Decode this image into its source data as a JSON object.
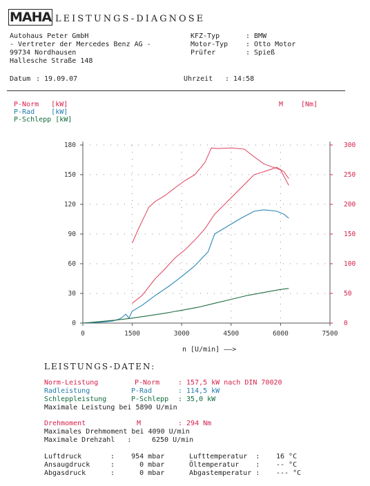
{
  "header": {
    "logo": "MAHA",
    "title": "LEISTUNGS-DIAGNOSE",
    "company_lines": [
      "Autohaus Peter GmbH",
      "- Vertreter der Mercedes Benz AG -",
      "99734 Nordhausen",
      "Hallesche Straße 148"
    ],
    "kfz_typ_label": "KFZ-Typ",
    "kfz_typ_value": ": BMW",
    "motor_typ_label": "Motor-Typ",
    "motor_typ_value": ": Otto Motor",
    "pruefer_label": "Prüfer",
    "pruefer_value": ": Spieß",
    "datum_label": "Datum",
    "datum_value": ": 19.09.07",
    "uhrzeit_label": "Uhrzeit",
    "uhrzeit_value": ": 14:58"
  },
  "legend": {
    "p_norm": "P-Norm   [kW]",
    "p_rad": "P-Rad    [kW]",
    "p_schlepp": "P-Schlepp [kW]",
    "m": "M",
    "m_unit": "[Nm]"
  },
  "chart_data": {
    "type": "line",
    "xlabel": "n [U/min] ——>",
    "xlim": [
      0,
      7500
    ],
    "ylim_left": [
      0,
      180
    ],
    "ylim_right": [
      0,
      300
    ],
    "x_ticks": [
      "0",
      "1500",
      "3000",
      "4500",
      "6000",
      "7500"
    ],
    "y_ticks_left": [
      "0",
      "30",
      "60",
      "90",
      "120",
      "150",
      "180"
    ],
    "y_ticks_right": [
      "0",
      "50",
      "100",
      "150",
      "200",
      "250",
      "300"
    ],
    "grid": "dotted",
    "colors": {
      "p_norm": "#e0506a",
      "p_rad": "#2a86b8",
      "p_schlepp": "#1f6b3e",
      "m": "#e0506a"
    },
    "series": [
      {
        "name": "P-Norm",
        "axis": "left",
        "color": "#e0506a",
        "x": [
          1500,
          1800,
          2200,
          2500,
          2800,
          3100,
          3400,
          3700,
          4000,
          4300,
          4600,
          4900,
          5200,
          5500,
          5890,
          6100,
          6250
        ],
        "y": [
          20,
          28,
          45,
          55,
          66,
          74,
          84,
          95,
          110,
          120,
          130,
          140,
          150,
          153,
          157.5,
          153,
          146
        ]
      },
      {
        "name": "P-Rad",
        "axis": "left",
        "color": "#2a86b8",
        "x": [
          0,
          600,
          900,
          1100,
          1200,
          1300,
          1400,
          1500,
          1800,
          2200,
          2600,
          3000,
          3400,
          3800,
          4000,
          4400,
          4800,
          5200,
          5500,
          5890,
          6100,
          6250
        ],
        "y": [
          0,
          1,
          2,
          4,
          6,
          9,
          5,
          12,
          18,
          28,
          37,
          47,
          58,
          72,
          90,
          98,
          106,
          113,
          114.5,
          113,
          110,
          106
        ]
      },
      {
        "name": "P-Schlepp",
        "axis": "left",
        "color": "#1f6b3e",
        "x": [
          0,
          1000,
          1500,
          2000,
          2500,
          3000,
          3500,
          4000,
          4500,
          5000,
          5500,
          6000,
          6250
        ],
        "y": [
          0,
          3,
          5,
          7.5,
          10,
          13,
          16,
          20,
          24,
          28,
          31,
          34,
          35
        ]
      },
      {
        "name": "M",
        "axis": "right",
        "color": "#e0506a",
        "x": [
          1500,
          1700,
          2000,
          2200,
          2500,
          2800,
          3100,
          3400,
          3700,
          3900,
          4090,
          4500,
          4900,
          5200,
          5500,
          6000,
          6250
        ],
        "y": [
          135,
          160,
          195,
          205,
          215,
          228,
          240,
          250,
          270,
          295,
          294,
          295,
          293,
          280,
          268,
          258,
          232
        ]
      }
    ]
  },
  "data_section": {
    "heading": "LEISTUNGS-DATEN:",
    "norm_label": "Norm-Leistung",
    "norm_sym": "P-Norm",
    "norm_value": ": 157,5 kW nach DIN 70020",
    "rad_label": "Radleistung",
    "rad_sym": "P-Rad",
    "rad_value": ": 114,5 kW",
    "schlepp_label": "Schleppleistung",
    "schlepp_sym": "P-Schlepp",
    "schlepp_value": ": 35,0 kW",
    "max_leistung": "Maximale Leistung bei 5890 U/min",
    "dreh_label": "Drehmoment",
    "dreh_sym": "M",
    "dreh_value": ": 294 Nm",
    "max_dreh_label": "Maximales Drehmoment bei 4090 U/min",
    "max_drehzahl_label": "Maximale Drehzahl   :",
    "max_drehzahl_value": "6250 U/min",
    "luftdruck_label": "Luftdruck",
    "luftdruck_value": ":    954 mbar",
    "ansaug_label": "Ansaugdruck",
    "ansaug_value": ":      0 mbar",
    "abgas_label": "Abgasdruck",
    "abgas_value": ":      0 mbar",
    "lufttemp_label": "Lufttemperatur  :",
    "lufttemp_value": "16 °C",
    "oel_label": "Öltemperatur    :",
    "oel_value": "-- °C",
    "abgastemp_label": "Abgastemperatur :",
    "abgastemp_value": "--- °C"
  }
}
